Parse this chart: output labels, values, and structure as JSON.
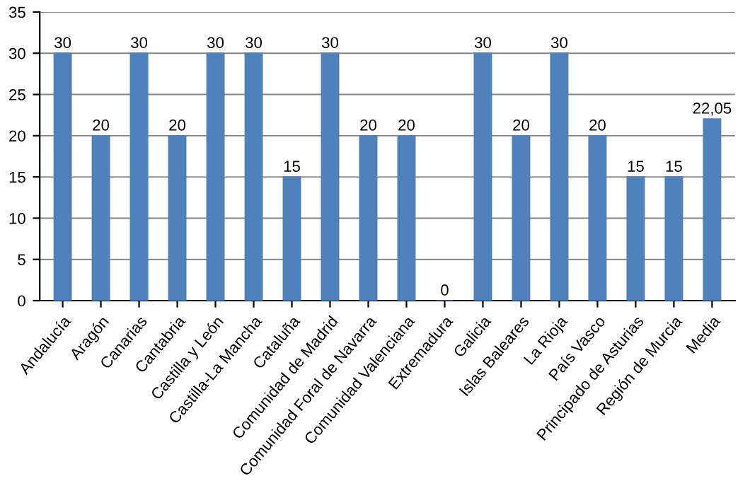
{
  "chart_data": {
    "type": "bar",
    "categories": [
      "Andalucía",
      "Aragón",
      "Canarias",
      "Cantabria",
      "Castilla y León",
      "Castilla-La Mancha",
      "Cataluña",
      "Comunidad de Madrid",
      "Comunidad Foral de Navarra",
      "Comunidad Valenciana",
      "Extremadura",
      "Galicia",
      "Islas Baleares",
      "La Rioja",
      "País Vasco",
      "Principado de Asturias",
      "Región de Murcia",
      "Media"
    ],
    "values": [
      30,
      20,
      30,
      20,
      30,
      30,
      15,
      30,
      20,
      20,
      0,
      30,
      20,
      30,
      20,
      15,
      15,
      22.05
    ],
    "value_labels": [
      "30",
      "20",
      "30",
      "20",
      "30",
      "30",
      "15",
      "30",
      "20",
      "20",
      "0",
      "30",
      "20",
      "30",
      "20",
      "15",
      "15",
      "22,05"
    ],
    "color": "#4f81bd",
    "ylim": [
      0,
      35
    ],
    "yticks": [
      0,
      5,
      10,
      15,
      20,
      25,
      30,
      35
    ],
    "grid": "y",
    "legend": false
  }
}
